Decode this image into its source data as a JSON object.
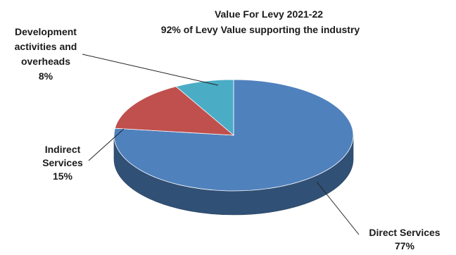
{
  "chart_data": {
    "type": "pie",
    "style": "3d",
    "title": "Value For Levy 2021-22",
    "subtitle": "92% of Levy Value supporting the industry",
    "slices": [
      {
        "label": [
          "Direct Services"
        ],
        "value": 77,
        "value_label": "77%",
        "color": "#4f81bd"
      },
      {
        "label": [
          "Indirect",
          "Services"
        ],
        "value": 15,
        "value_label": "15%",
        "color": "#c0504d"
      },
      {
        "label": [
          "Development",
          "activities and",
          "overheads"
        ],
        "value": 8,
        "value_label": "8%",
        "color": "#4bacc6"
      }
    ],
    "legend": "none",
    "data_labels": "outside-with-leader-lines"
  }
}
